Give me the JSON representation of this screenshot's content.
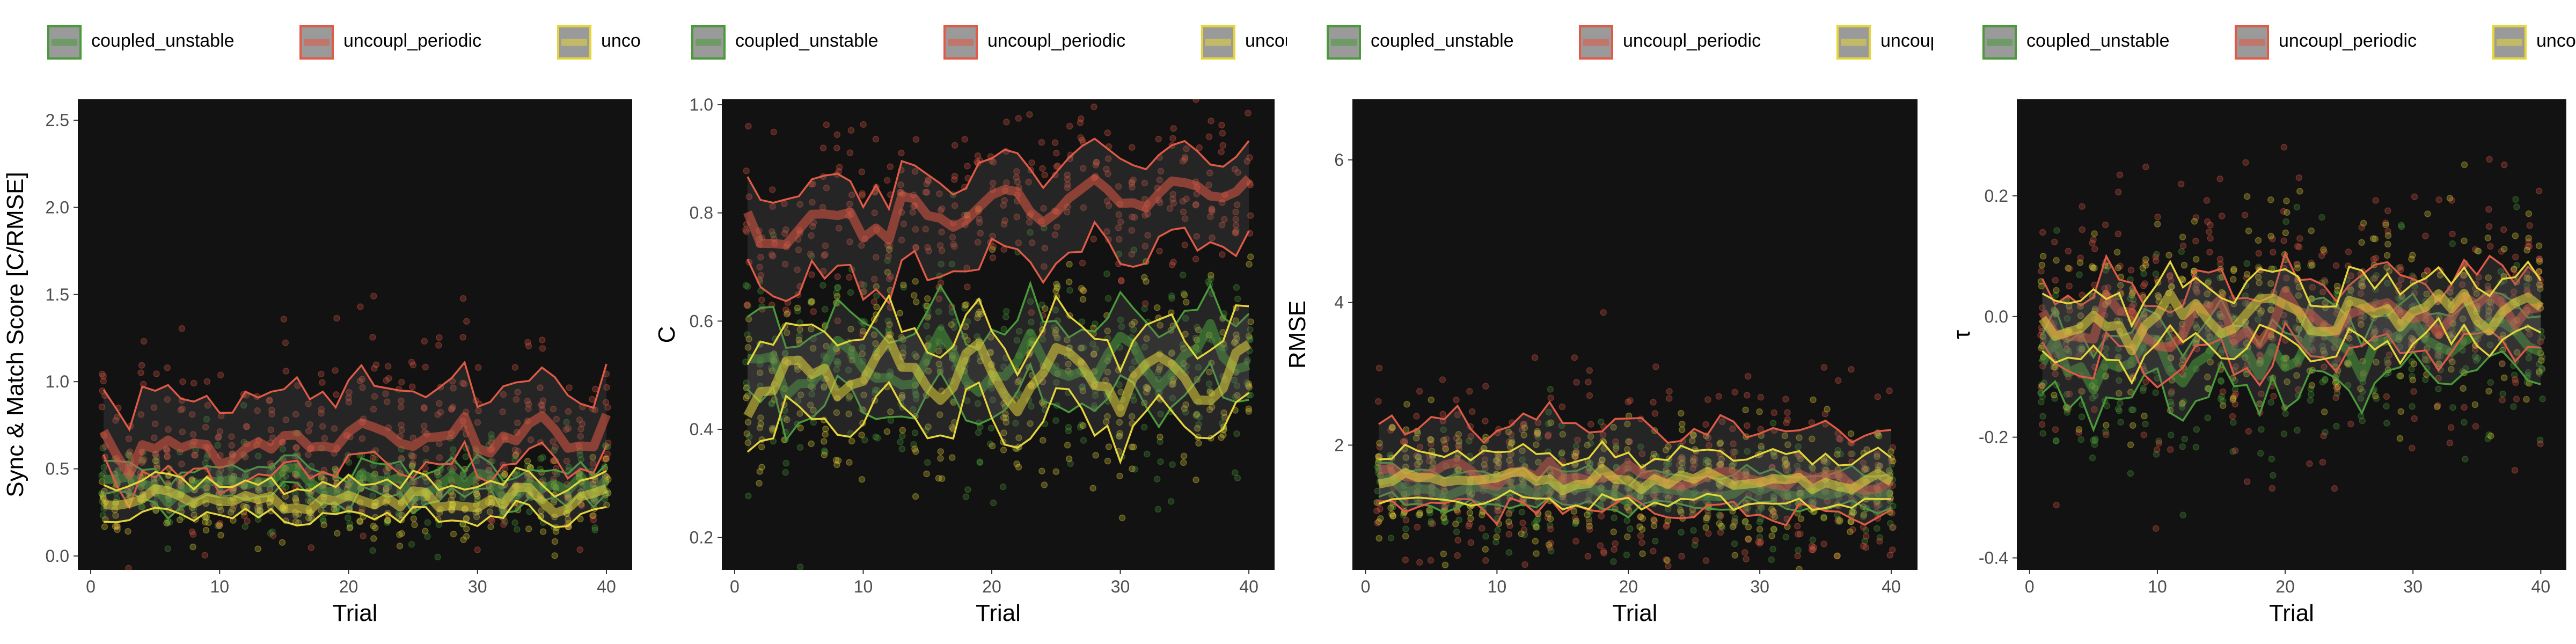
{
  "chart_data": [
    {
      "type": "line",
      "xlabel": "Trial",
      "ylabel": "Sync & Match Score [C/RMSE]",
      "xlim": [
        -1,
        42
      ],
      "ylim": [
        -0.08,
        2.62
      ],
      "xticks": [
        0,
        10,
        20,
        30,
        40
      ],
      "yticks": [
        0.0,
        0.5,
        1.0,
        1.5,
        2.0,
        2.5
      ],
      "ytick_labels": [
        "0.0",
        "0.5",
        "1.0",
        "1.5",
        "2.0",
        "2.5"
      ],
      "legend_placement": "top",
      "grid": false,
      "series": [
        {
          "name": "coupled_unstable",
          "mean": 0.42,
          "spread": 0.07,
          "amp": 0.04,
          "lo_w": 0.08,
          "hi_w": 0.09,
          "trend": 0.0,
          "scatter_sd": 0.12
        },
        {
          "name": "uncoupl_periodic",
          "mean": 0.66,
          "spread": 0.08,
          "amp": 0.07,
          "lo_w": 0.16,
          "hi_w": 0.28,
          "trend": 0.1,
          "scatter_sd": 0.28
        },
        {
          "name": "uncoupl_unstable",
          "mean": 0.32,
          "spread": 0.05,
          "amp": 0.03,
          "lo_w": 0.09,
          "hi_w": 0.1,
          "trend": 0.0,
          "scatter_sd": 0.1
        }
      ]
    },
    {
      "type": "line",
      "xlabel": "Trial",
      "ylabel": "C",
      "xlim": [
        -1,
        42
      ],
      "ylim": [
        0.14,
        1.01
      ],
      "xticks": [
        0,
        10,
        20,
        30,
        40
      ],
      "yticks": [
        0.2,
        0.4,
        0.6,
        0.8,
        1.0
      ],
      "ytick_labels": [
        "0.2",
        "0.4",
        "0.6",
        "0.8",
        "1.0"
      ],
      "legend_placement": "top",
      "grid": false,
      "series": [
        {
          "name": "coupled_unstable",
          "mean": 0.52,
          "spread": 0.03,
          "amp": 0.04,
          "lo_w": 0.07,
          "hi_w": 0.08,
          "trend": 0.02,
          "scatter_sd": 0.09
        },
        {
          "name": "uncoupl_periodic",
          "mean": 0.81,
          "spread": 0.02,
          "amp": 0.03,
          "lo_w": 0.1,
          "hi_w": 0.07,
          "trend": 0.1,
          "scatter_sd": 0.08
        },
        {
          "name": "uncoupl_unstable",
          "mean": 0.5,
          "spread": 0.03,
          "amp": 0.04,
          "lo_w": 0.08,
          "hi_w": 0.08,
          "trend": 0.02,
          "scatter_sd": 0.09
        }
      ]
    },
    {
      "type": "line",
      "xlabel": "Trial",
      "ylabel": "RMSE",
      "xlim": [
        -1,
        42
      ],
      "ylim": [
        0.25,
        6.85
      ],
      "xticks": [
        0,
        10,
        20,
        30,
        40
      ],
      "yticks": [
        2,
        4,
        6
      ],
      "ytick_labels": [
        "2",
        "4",
        "6"
      ],
      "legend_placement": "top",
      "grid": false,
      "series": [
        {
          "name": "coupled_unstable",
          "mean": 1.35,
          "spread": 0.08,
          "amp": 0.06,
          "lo_w": 0.2,
          "hi_w": 0.25,
          "trend": -0.05,
          "scatter_sd": 0.35
        },
        {
          "name": "uncoupl_periodic",
          "mean": 1.55,
          "spread": 0.12,
          "amp": 0.1,
          "lo_w": 0.45,
          "hi_w": 0.7,
          "trend": -0.15,
          "scatter_sd": 0.7
        },
        {
          "name": "uncoupl_unstable",
          "mean": 1.5,
          "spread": 0.08,
          "amp": 0.06,
          "lo_w": 0.3,
          "hi_w": 0.35,
          "trend": -0.05,
          "scatter_sd": 0.45
        }
      ]
    },
    {
      "type": "line",
      "xlabel": "Trial",
      "ylabel": "τ",
      "xlim": [
        -1,
        42
      ],
      "ylim": [
        -0.42,
        0.36
      ],
      "xticks": [
        0,
        10,
        20,
        30,
        40
      ],
      "yticks": [
        -0.4,
        -0.2,
        0.0,
        0.2
      ],
      "ytick_labels": [
        "-0.4",
        "-0.2",
        "0.0",
        "0.2"
      ],
      "legend_placement": "top",
      "grid": false,
      "series": [
        {
          "name": "coupled_unstable",
          "mean": -0.05,
          "spread": 0.03,
          "amp": 0.02,
          "lo_w": 0.06,
          "hi_w": 0.05,
          "trend": 0.04,
          "scatter_sd": 0.08
        },
        {
          "name": "uncoupl_periodic",
          "mean": 0.0,
          "spread": 0.03,
          "amp": 0.02,
          "lo_w": 0.06,
          "hi_w": 0.06,
          "trend": 0.02,
          "scatter_sd": 0.1
        },
        {
          "name": "uncoupl_unstable",
          "mean": 0.0,
          "spread": 0.03,
          "amp": 0.02,
          "lo_w": 0.05,
          "hi_w": 0.05,
          "trend": 0.02,
          "scatter_sd": 0.08
        }
      ]
    }
  ],
  "legend": {
    "items": [
      "coupled_unstable",
      "uncoupl_periodic",
      "uncoupl_unstable"
    ]
  },
  "colors": {
    "coupled_unstable": "#4a9a3a",
    "uncoupl_periodic": "#e05a45",
    "uncoupl_unstable": "#e6d53a",
    "panel_background": "#121212",
    "axis_text": "#4d4d4d",
    "axis_title": "#000000"
  }
}
